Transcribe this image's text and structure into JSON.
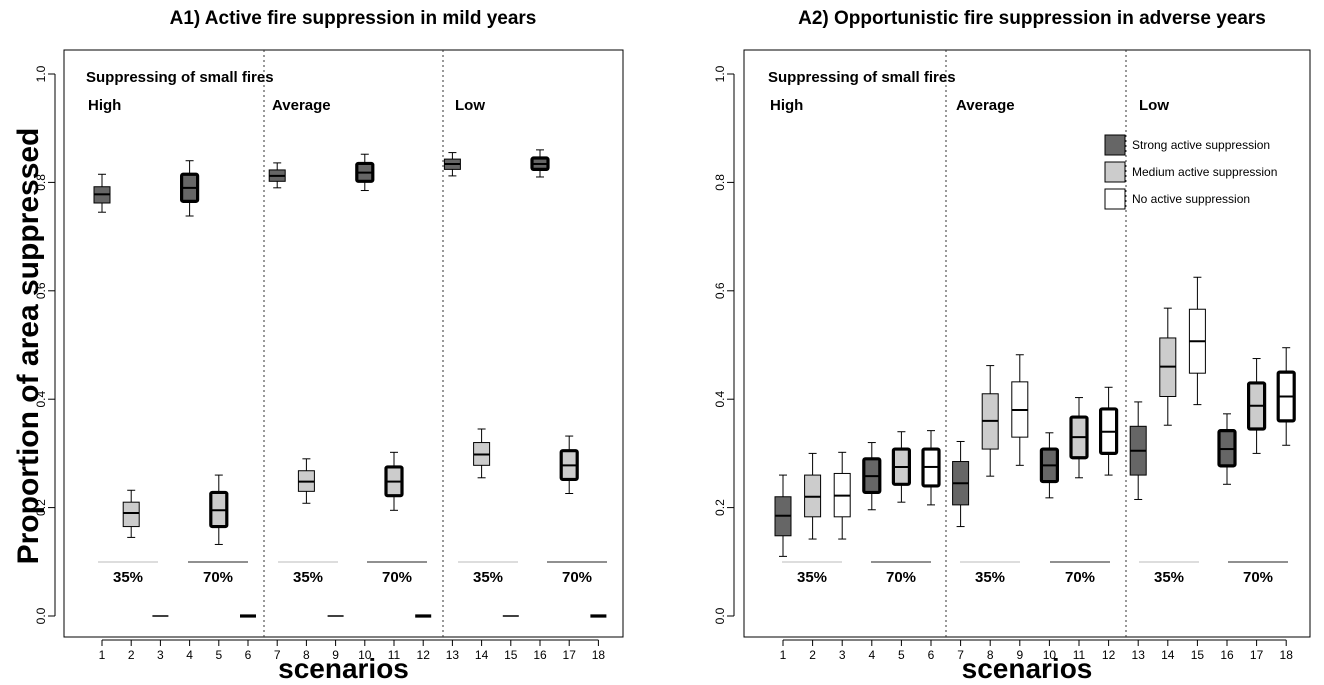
{
  "ylabel": "Proportion of area suppressed",
  "colors": {
    "strong": "#666666",
    "medium": "#cccccc",
    "none": "#ffffff",
    "stroke": "#000000"
  },
  "chart_data": [
    {
      "type": "box",
      "title": "A1) Active fire suppression in mild years",
      "xlabel": "scenarios",
      "ylabel": "Proportion of area suppressed",
      "ylim": [
        0,
        1
      ],
      "yticks": [
        "0.0",
        "0.2",
        "0.4",
        "0.6",
        "0.8",
        "1.0"
      ],
      "categories": [
        "1",
        "2",
        "3",
        "4",
        "5",
        "6",
        "7",
        "8",
        "9",
        "10",
        "11",
        "12",
        "13",
        "14",
        "15",
        "16",
        "17",
        "18"
      ],
      "group_header": "Suppressing of small fires",
      "groups": [
        "High",
        "Average",
        "Low"
      ],
      "subgroup_labels": [
        "35%",
        "70%",
        "35%",
        "70%",
        "35%",
        "70%"
      ],
      "legend": [],
      "boxes": [
        {
          "x": "1",
          "min": 0.745,
          "q1": 0.762,
          "median": 0.778,
          "q3": 0.792,
          "max": 0.815,
          "fill": "strong",
          "thick": false
        },
        {
          "x": "2",
          "min": 0.145,
          "q1": 0.165,
          "median": 0.19,
          "q3": 0.21,
          "max": 0.232,
          "fill": "medium",
          "thick": false
        },
        {
          "x": "3",
          "min": 0,
          "q1": 0,
          "median": 0,
          "q3": 0,
          "max": 0,
          "fill": "none",
          "thick": false
        },
        {
          "x": "4",
          "min": 0.738,
          "q1": 0.765,
          "median": 0.79,
          "q3": 0.815,
          "max": 0.84,
          "fill": "strong",
          "thick": true
        },
        {
          "x": "5",
          "min": 0.132,
          "q1": 0.165,
          "median": 0.195,
          "q3": 0.228,
          "max": 0.26,
          "fill": "medium",
          "thick": true
        },
        {
          "x": "6",
          "min": 0,
          "q1": 0,
          "median": 0,
          "q3": 0,
          "max": 0,
          "fill": "none",
          "thick": true
        },
        {
          "x": "7",
          "min": 0.79,
          "q1": 0.802,
          "median": 0.812,
          "q3": 0.823,
          "max": 0.836,
          "fill": "strong",
          "thick": false
        },
        {
          "x": "8",
          "min": 0.208,
          "q1": 0.23,
          "median": 0.248,
          "q3": 0.268,
          "max": 0.29,
          "fill": "medium",
          "thick": false
        },
        {
          "x": "9",
          "min": 0,
          "q1": 0,
          "median": 0,
          "q3": 0,
          "max": 0,
          "fill": "none",
          "thick": false
        },
        {
          "x": "10",
          "min": 0.785,
          "q1": 0.802,
          "median": 0.818,
          "q3": 0.835,
          "max": 0.852,
          "fill": "strong",
          "thick": true
        },
        {
          "x": "11",
          "min": 0.195,
          "q1": 0.222,
          "median": 0.248,
          "q3": 0.275,
          "max": 0.302,
          "fill": "medium",
          "thick": true
        },
        {
          "x": "12",
          "min": 0,
          "q1": 0,
          "median": 0,
          "q3": 0,
          "max": 0,
          "fill": "none",
          "thick": true
        },
        {
          "x": "13",
          "min": 0.812,
          "q1": 0.824,
          "median": 0.834,
          "q3": 0.843,
          "max": 0.855,
          "fill": "strong",
          "thick": false
        },
        {
          "x": "14",
          "min": 0.255,
          "q1": 0.278,
          "median": 0.298,
          "q3": 0.32,
          "max": 0.345,
          "fill": "medium",
          "thick": false
        },
        {
          "x": "15",
          "min": 0,
          "q1": 0,
          "median": 0,
          "q3": 0,
          "max": 0,
          "fill": "none",
          "thick": false
        },
        {
          "x": "16",
          "min": 0.81,
          "q1": 0.824,
          "median": 0.834,
          "q3": 0.845,
          "max": 0.86,
          "fill": "strong",
          "thick": true
        },
        {
          "x": "17",
          "min": 0.226,
          "q1": 0.252,
          "median": 0.278,
          "q3": 0.305,
          "max": 0.332,
          "fill": "medium",
          "thick": true
        },
        {
          "x": "18",
          "min": 0,
          "q1": 0,
          "median": 0,
          "q3": 0,
          "max": 0,
          "fill": "none",
          "thick": true
        }
      ]
    },
    {
      "type": "box",
      "title": "A2) Opportunistic fire suppression in adverse years",
      "xlabel": "scenarios",
      "ylabel": "",
      "ylim": [
        0,
        1
      ],
      "yticks": [
        "0.0",
        "0.2",
        "0.4",
        "0.6",
        "0.8",
        "1.0"
      ],
      "categories": [
        "1",
        "2",
        "3",
        "4",
        "5",
        "6",
        "7",
        "8",
        "9",
        "10",
        "11",
        "12",
        "13",
        "14",
        "15",
        "16",
        "17",
        "18"
      ],
      "group_header": "Suppressing of small fires",
      "groups": [
        "High",
        "Average",
        "Low"
      ],
      "subgroup_labels": [
        "35%",
        "70%",
        "35%",
        "70%",
        "35%",
        "70%"
      ],
      "legend": [
        "Strong active suppression",
        "Medium active suppression",
        "No active suppression"
      ],
      "boxes": [
        {
          "x": "1",
          "min": 0.11,
          "q1": 0.148,
          "median": 0.185,
          "q3": 0.22,
          "max": 0.26,
          "fill": "strong",
          "thick": false
        },
        {
          "x": "2",
          "min": 0.142,
          "q1": 0.183,
          "median": 0.22,
          "q3": 0.26,
          "max": 0.3,
          "fill": "medium",
          "thick": false
        },
        {
          "x": "3",
          "min": 0.142,
          "q1": 0.183,
          "median": 0.222,
          "q3": 0.263,
          "max": 0.302,
          "fill": "none",
          "thick": false
        },
        {
          "x": "4",
          "min": 0.196,
          "q1": 0.228,
          "median": 0.258,
          "q3": 0.29,
          "max": 0.32,
          "fill": "strong",
          "thick": true
        },
        {
          "x": "5",
          "min": 0.21,
          "q1": 0.243,
          "median": 0.275,
          "q3": 0.308,
          "max": 0.34,
          "fill": "medium",
          "thick": true
        },
        {
          "x": "6",
          "min": 0.205,
          "q1": 0.24,
          "median": 0.275,
          "q3": 0.308,
          "max": 0.342,
          "fill": "none",
          "thick": true
        },
        {
          "x": "7",
          "min": 0.165,
          "q1": 0.205,
          "median": 0.245,
          "q3": 0.285,
          "max": 0.322,
          "fill": "strong",
          "thick": false
        },
        {
          "x": "8",
          "min": 0.258,
          "q1": 0.308,
          "median": 0.36,
          "q3": 0.41,
          "max": 0.462,
          "fill": "medium",
          "thick": false
        },
        {
          "x": "9",
          "min": 0.278,
          "q1": 0.33,
          "median": 0.38,
          "q3": 0.432,
          "max": 0.482,
          "fill": "none",
          "thick": false
        },
        {
          "x": "10",
          "min": 0.218,
          "q1": 0.248,
          "median": 0.278,
          "q3": 0.308,
          "max": 0.338,
          "fill": "strong",
          "thick": true
        },
        {
          "x": "11",
          "min": 0.255,
          "q1": 0.292,
          "median": 0.33,
          "q3": 0.367,
          "max": 0.403,
          "fill": "medium",
          "thick": true
        },
        {
          "x": "12",
          "min": 0.26,
          "q1": 0.3,
          "median": 0.34,
          "q3": 0.382,
          "max": 0.422,
          "fill": "none",
          "thick": true
        },
        {
          "x": "13",
          "min": 0.215,
          "q1": 0.26,
          "median": 0.305,
          "q3": 0.35,
          "max": 0.395,
          "fill": "strong",
          "thick": false
        },
        {
          "x": "14",
          "min": 0.352,
          "q1": 0.405,
          "median": 0.46,
          "q3": 0.513,
          "max": 0.568,
          "fill": "medium",
          "thick": false
        },
        {
          "x": "15",
          "min": 0.39,
          "q1": 0.448,
          "median": 0.507,
          "q3": 0.566,
          "max": 0.625,
          "fill": "none",
          "thick": false
        },
        {
          "x": "16",
          "min": 0.243,
          "q1": 0.277,
          "median": 0.308,
          "q3": 0.342,
          "max": 0.373,
          "fill": "strong",
          "thick": true
        },
        {
          "x": "17",
          "min": 0.3,
          "q1": 0.345,
          "median": 0.388,
          "q3": 0.43,
          "max": 0.475,
          "fill": "medium",
          "thick": true
        },
        {
          "x": "18",
          "min": 0.315,
          "q1": 0.36,
          "median": 0.405,
          "q3": 0.45,
          "max": 0.495,
          "fill": "none",
          "thick": true
        }
      ]
    }
  ]
}
